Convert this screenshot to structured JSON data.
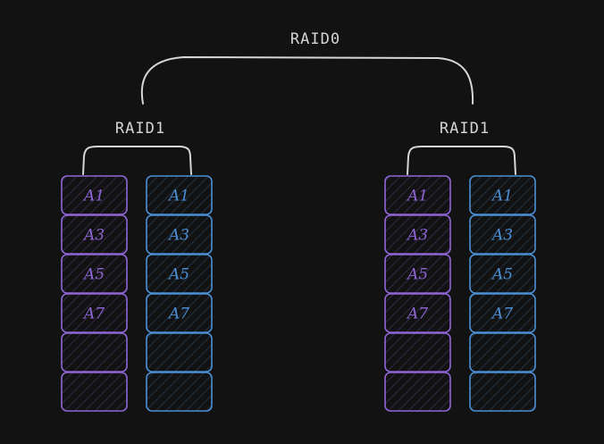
{
  "colors": {
    "background": "#121212",
    "bracket": "#d6d6d6",
    "disk_purple": "#8f66d6",
    "disk_blue": "#4b90d6"
  },
  "diagram": {
    "top_label": "RAID0",
    "groups": [
      {
        "label": "RAID1",
        "disks": [
          {
            "color": "purple",
            "blocks": [
              "A1",
              "A3",
              "A5",
              "A7",
              "",
              ""
            ]
          },
          {
            "color": "blue",
            "blocks": [
              "A1",
              "A3",
              "A5",
              "A7",
              "",
              ""
            ]
          }
        ]
      },
      {
        "label": "RAID1",
        "disks": [
          {
            "color": "purple",
            "blocks": [
              "A1",
              "A3",
              "A5",
              "A7",
              "",
              ""
            ]
          },
          {
            "color": "blue",
            "blocks": [
              "A1",
              "A3",
              "A5",
              "A7",
              "",
              ""
            ]
          }
        ]
      }
    ]
  }
}
